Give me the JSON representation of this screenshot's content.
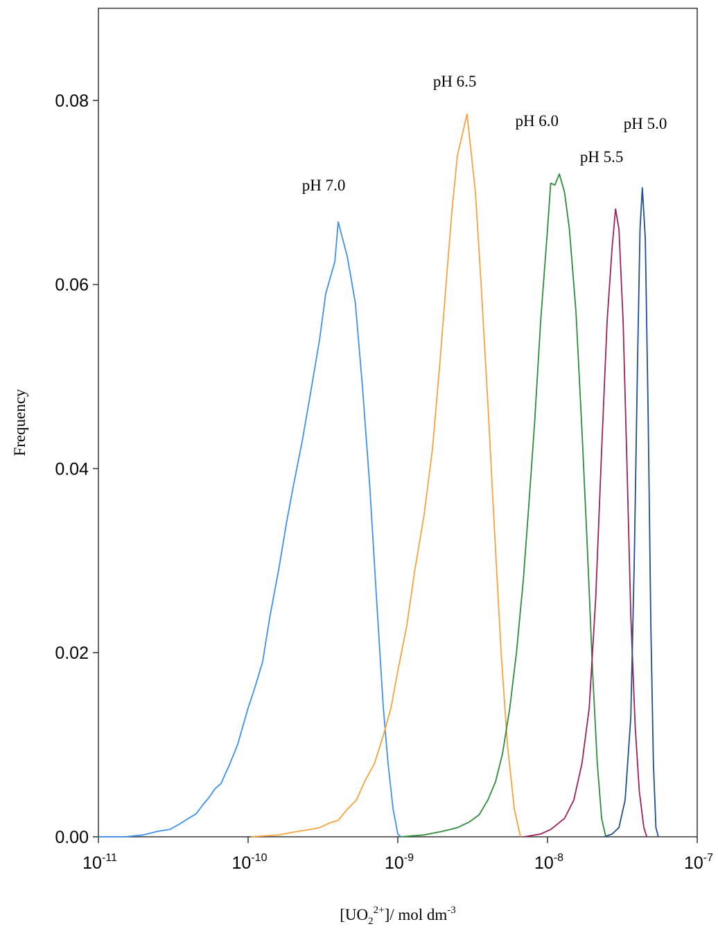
{
  "chart_data": {
    "type": "line",
    "title": "",
    "xlabel": {
      "main": "[UO",
      "sub": "2",
      "sup": "2+",
      "tail": "]/ mol dm",
      "tail_sup": "-3"
    },
    "ylabel": "Frequency",
    "x_scale": "log",
    "xlim": [
      1e-11,
      1e-07
    ],
    "ylim": [
      0,
      0.09
    ],
    "y_ticks": [
      "0.00",
      "0.02",
      "0.04",
      "0.06",
      "0.08"
    ],
    "y_tick_values": [
      0,
      0.02,
      0.04,
      0.06,
      0.08
    ],
    "x_ticks": [
      {
        "base": "10",
        "exp": "-11",
        "value": 1e-11
      },
      {
        "base": "10",
        "exp": "-10",
        "value": 1e-10
      },
      {
        "base": "10",
        "exp": "-9",
        "value": 1e-09
      },
      {
        "base": "10",
        "exp": "-8",
        "value": 1e-08
      },
      {
        "base": "10",
        "exp": "-7",
        "value": 1e-07
      }
    ],
    "grid": false,
    "legend": "none",
    "series": [
      {
        "name": "pH 7.0",
        "color": "#3d8ff0",
        "points": [
          [
            1e-11,
            0.0
          ],
          [
            1.5e-11,
            0.0
          ],
          [
            2e-11,
            0.0002
          ],
          [
            2.5e-11,
            0.0006
          ],
          [
            3e-11,
            0.0008
          ],
          [
            3.5e-11,
            0.0014
          ],
          [
            4e-11,
            0.002
          ],
          [
            4.5e-11,
            0.0025
          ],
          [
            5e-11,
            0.0035
          ],
          [
            5.5e-11,
            0.0043
          ],
          [
            6e-11,
            0.0052
          ],
          [
            6.6e-11,
            0.0058
          ],
          [
            7.5e-11,
            0.0078
          ],
          [
            8.5e-11,
            0.01
          ],
          [
            1e-10,
            0.014
          ],
          [
            1.1e-10,
            0.016
          ],
          [
            1.25e-10,
            0.019
          ],
          [
            1.4e-10,
            0.024
          ],
          [
            1.6e-10,
            0.029
          ],
          [
            1.8e-10,
            0.034
          ],
          [
            2e-10,
            0.038
          ],
          [
            2.3e-10,
            0.043
          ],
          [
            2.6e-10,
            0.048
          ],
          [
            3e-10,
            0.054
          ],
          [
            3.3e-10,
            0.059
          ],
          [
            3.8e-10,
            0.0625
          ],
          [
            4e-10,
            0.0668
          ],
          [
            4.6e-10,
            0.063
          ],
          [
            5.2e-10,
            0.058
          ],
          [
            5.8e-10,
            0.049
          ],
          [
            6.5e-10,
            0.038
          ],
          [
            7.2e-10,
            0.026
          ],
          [
            8e-10,
            0.014
          ],
          [
            8.6e-10,
            0.008
          ],
          [
            9.3e-10,
            0.003
          ],
          [
            1e-09,
            0.0003
          ],
          [
            1.05e-09,
            0.0
          ]
        ]
      },
      {
        "name": "pH 6.5",
        "color": "#f7a23b",
        "points": [
          [
            1.05e-10,
            0.0
          ],
          [
            1.6e-10,
            0.0002
          ],
          [
            2e-10,
            0.0005
          ],
          [
            2.6e-10,
            0.0008
          ],
          [
            3e-10,
            0.001
          ],
          [
            3.5e-10,
            0.0015
          ],
          [
            4e-10,
            0.0018
          ],
          [
            4.6e-10,
            0.003
          ],
          [
            5.3e-10,
            0.004
          ],
          [
            6e-10,
            0.006
          ],
          [
            7e-10,
            0.008
          ],
          [
            8e-10,
            0.011
          ],
          [
            9e-10,
            0.014
          ],
          [
            1e-09,
            0.018
          ],
          [
            1.15e-09,
            0.023
          ],
          [
            1.3e-09,
            0.029
          ],
          [
            1.5e-09,
            0.035
          ],
          [
            1.7e-09,
            0.042
          ],
          [
            1.9e-09,
            0.051
          ],
          [
            2.1e-09,
            0.06
          ],
          [
            2.3e-09,
            0.068
          ],
          [
            2.5e-09,
            0.074
          ],
          [
            2.9e-09,
            0.0785
          ],
          [
            3.3e-09,
            0.07
          ],
          [
            3.6e-09,
            0.06
          ],
          [
            4e-09,
            0.047
          ],
          [
            4.4e-09,
            0.034
          ],
          [
            4.9e-09,
            0.02
          ],
          [
            5.4e-09,
            0.01
          ],
          [
            6e-09,
            0.003
          ],
          [
            6.6e-09,
            0.0
          ]
        ]
      },
      {
        "name": "pH 6.0",
        "color": "#2e8b3a",
        "points": [
          [
            1.05e-09,
            0.0
          ],
          [
            1.5e-09,
            0.0002
          ],
          [
            2e-09,
            0.0006
          ],
          [
            2.5e-09,
            0.001
          ],
          [
            3e-09,
            0.0016
          ],
          [
            3.5e-09,
            0.0024
          ],
          [
            4e-09,
            0.004
          ],
          [
            4.5e-09,
            0.006
          ],
          [
            5e-09,
            0.009
          ],
          [
            5.6e-09,
            0.014
          ],
          [
            6.2e-09,
            0.02
          ],
          [
            6.9e-09,
            0.028
          ],
          [
            7.5e-09,
            0.036
          ],
          [
            8.2e-09,
            0.045
          ],
          [
            9e-09,
            0.056
          ],
          [
            1e-08,
            0.066
          ],
          [
            1.05e-08,
            0.071
          ],
          [
            1.12e-08,
            0.0708
          ],
          [
            1.2e-08,
            0.072
          ],
          [
            1.3e-08,
            0.07
          ],
          [
            1.4e-08,
            0.066
          ],
          [
            1.55e-08,
            0.057
          ],
          [
            1.7e-08,
            0.044
          ],
          [
            1.85e-08,
            0.031
          ],
          [
            2e-08,
            0.018
          ],
          [
            2.15e-08,
            0.008
          ],
          [
            2.3e-08,
            0.002
          ],
          [
            2.45e-08,
            0.0
          ]
        ]
      },
      {
        "name": "pH 5.5",
        "color": "#9b1f5a",
        "points": [
          [
            7e-09,
            0.0
          ],
          [
            9e-09,
            0.0003
          ],
          [
            1.05e-08,
            0.0008
          ],
          [
            1.3e-08,
            0.002
          ],
          [
            1.5e-08,
            0.004
          ],
          [
            1.7e-08,
            0.008
          ],
          [
            1.9e-08,
            0.014
          ],
          [
            2.1e-08,
            0.026
          ],
          [
            2.3e-08,
            0.042
          ],
          [
            2.5e-08,
            0.056
          ],
          [
            2.7e-08,
            0.064
          ],
          [
            2.85e-08,
            0.0682
          ],
          [
            3e-08,
            0.066
          ],
          [
            3.2e-08,
            0.056
          ],
          [
            3.4e-08,
            0.04
          ],
          [
            3.6e-08,
            0.024
          ],
          [
            3.85e-08,
            0.012
          ],
          [
            4.1e-08,
            0.005
          ],
          [
            4.4e-08,
            0.001
          ],
          [
            4.6e-08,
            0.0
          ]
        ]
      },
      {
        "name": "pH 5.0",
        "color": "#1f4e8c",
        "points": [
          [
            2.4e-08,
            0.0
          ],
          [
            2.7e-08,
            0.0003
          ],
          [
            3e-08,
            0.001
          ],
          [
            3.3e-08,
            0.004
          ],
          [
            3.6e-08,
            0.013
          ],
          [
            3.8e-08,
            0.03
          ],
          [
            4e-08,
            0.052
          ],
          [
            4.15e-08,
            0.066
          ],
          [
            4.3e-08,
            0.0705
          ],
          [
            4.5e-08,
            0.065
          ],
          [
            4.7e-08,
            0.046
          ],
          [
            4.9e-08,
            0.023
          ],
          [
            5.1e-08,
            0.008
          ],
          [
            5.3e-08,
            0.001
          ],
          [
            5.5e-08,
            0.0
          ]
        ]
      }
    ],
    "annotations": [
      {
        "text": "pH 7.0",
        "x": 3.2e-10,
        "y": 0.0702
      },
      {
        "text": "pH 6.5",
        "x": 2.4e-09,
        "y": 0.0815
      },
      {
        "text": "pH 6.0",
        "x": 8.5e-09,
        "y": 0.0772
      },
      {
        "text": "pH 5.5",
        "x": 2.3e-08,
        "y": 0.0733
      },
      {
        "text": "pH 5.0",
        "x": 4.5e-08,
        "y": 0.0769
      }
    ]
  }
}
